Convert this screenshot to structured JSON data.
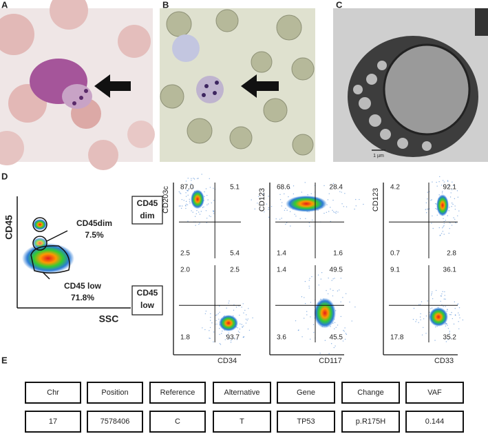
{
  "panels": {
    "a": "A",
    "b": "B",
    "c": "C",
    "d": "D",
    "e": "E"
  },
  "scale_bar": "1 µm",
  "gating": {
    "y_label": "CD45",
    "x_label": "SSC",
    "dim_label": "CD45dim",
    "dim_pct": "7.5%",
    "low_label": "CD45 low",
    "low_pct": "71.8%"
  },
  "row_labels": [
    [
      "CD45",
      "dim"
    ],
    [
      "CD45",
      "low"
    ]
  ],
  "plots": [
    {
      "x_label": "CD34",
      "y_label": "CD203c",
      "quadrants": [
        [
          "87.0",
          "5.1",
          "2.5",
          "5.4"
        ],
        [
          "2.0",
          "2.5",
          "1.8",
          "93.7"
        ]
      ]
    },
    {
      "x_label": "CD117",
      "y_label": "CD123",
      "quadrants": [
        [
          "68.6",
          "28.4",
          "1.4",
          "1.6"
        ],
        [
          "1.4",
          "49.5",
          "3.6",
          "45.5"
        ]
      ]
    },
    {
      "x_label": "CD33",
      "y_label": "CD123",
      "quadrants": [
        [
          "4.2",
          "92.1",
          "0.7",
          "2.8"
        ],
        [
          "9.1",
          "36.1",
          "17.8",
          "35.2"
        ]
      ]
    }
  ],
  "table": {
    "header": [
      "Chr",
      "Position",
      "Reference",
      "Alternative",
      "Gene",
      "Change",
      "VAF"
    ],
    "rows": [
      [
        "17",
        "7578406",
        "C",
        "T",
        "TP53",
        "p.R175H",
        "0.144"
      ]
    ]
  }
}
